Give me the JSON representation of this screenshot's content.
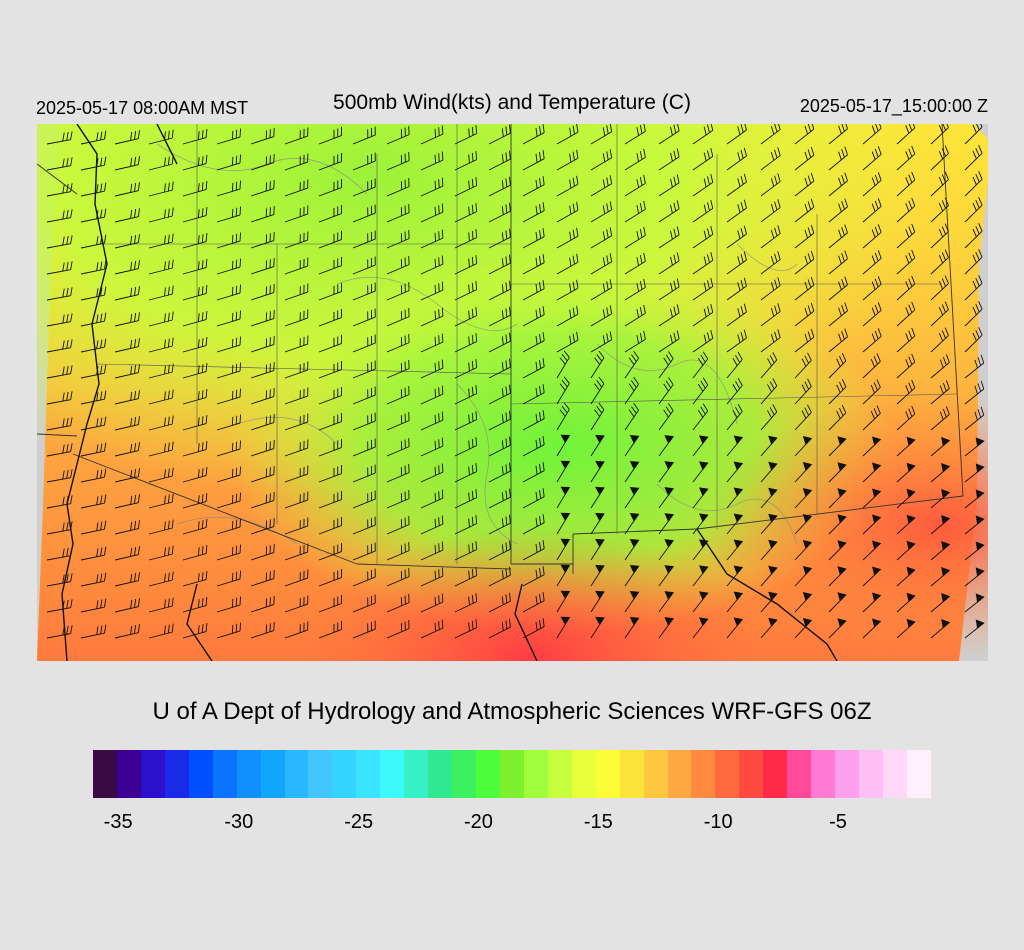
{
  "header": {
    "local_time": "2025-05-17 08:00AM MST",
    "title": "500mb Wind(kts) and Temperature (C)",
    "valid_time": "2025-05-17_15:00:00 Z"
  },
  "footer": {
    "credit": "U of A Dept of Hydrology and Atmospheric Sciences WRF-GFS 06Z"
  },
  "colors": {
    "background": "#e3e3e3",
    "map_outside": "#cfcfcf"
  },
  "colorbar": {
    "swatches": [
      "#3a0a44",
      "#3d0094",
      "#2c10cc",
      "#1a2ae6",
      "#0050ff",
      "#0a74ff",
      "#1090ff",
      "#12a6ff",
      "#29b8ff",
      "#41c6ff",
      "#33d4ff",
      "#3ae4ff",
      "#3cfafa",
      "#38f0c8",
      "#30e890",
      "#3cf060",
      "#4cff3a",
      "#7df030",
      "#a0ff3c",
      "#c8ff3c",
      "#e8ff3c",
      "#fdfc39",
      "#fde43a",
      "#fdc83f",
      "#fda840",
      "#ff8a40",
      "#ff6a3e",
      "#ff4a40",
      "#ff2a48",
      "#ff4a9c",
      "#ff7ad2",
      "#ffa0ee",
      "#ffbef4",
      "#ffd8fa",
      "#fff0fc"
    ],
    "tick_labels": [
      "-35",
      "-30",
      "-25",
      "-20",
      "-15",
      "-10",
      "-5"
    ],
    "tick_positions": [
      0.03,
      0.174,
      0.317,
      0.46,
      0.603,
      0.746,
      0.889
    ]
  },
  "map": {
    "field": "500mb temperature",
    "region": "US Southwest and Northern Mexico",
    "contours": "terrain height",
    "barbs": "wind (kts)"
  }
}
